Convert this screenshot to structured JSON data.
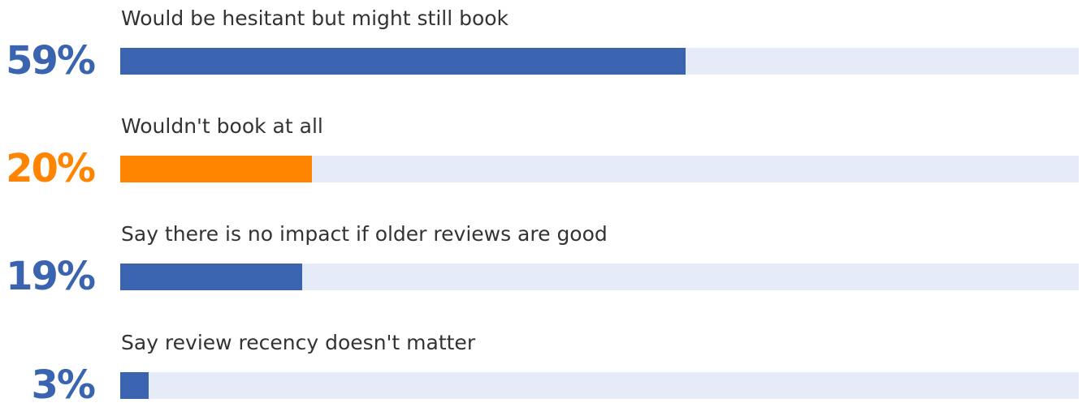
{
  "colors": {
    "primary": "#3a63b0",
    "highlight": "#ff8400",
    "track": "#e5ebf7",
    "label_text": "#333333"
  },
  "chart_data": {
    "type": "bar",
    "orientation": "horizontal",
    "unit": "%",
    "xlim": [
      0,
      100
    ],
    "categories": [
      "Would be hesitant but might still book",
      "Wouldn't book at all",
      "Say there is no impact if older reviews are good",
      "Say review recency doesn't matter"
    ],
    "values": [
      59,
      20,
      19,
      3
    ],
    "value_labels": [
      "59%",
      "20%",
      "19%",
      "3%"
    ],
    "bar_colors": [
      "#3a63b0",
      "#ff8400",
      "#3a63b0",
      "#3a63b0"
    ],
    "grid": false,
    "legend": "none"
  }
}
